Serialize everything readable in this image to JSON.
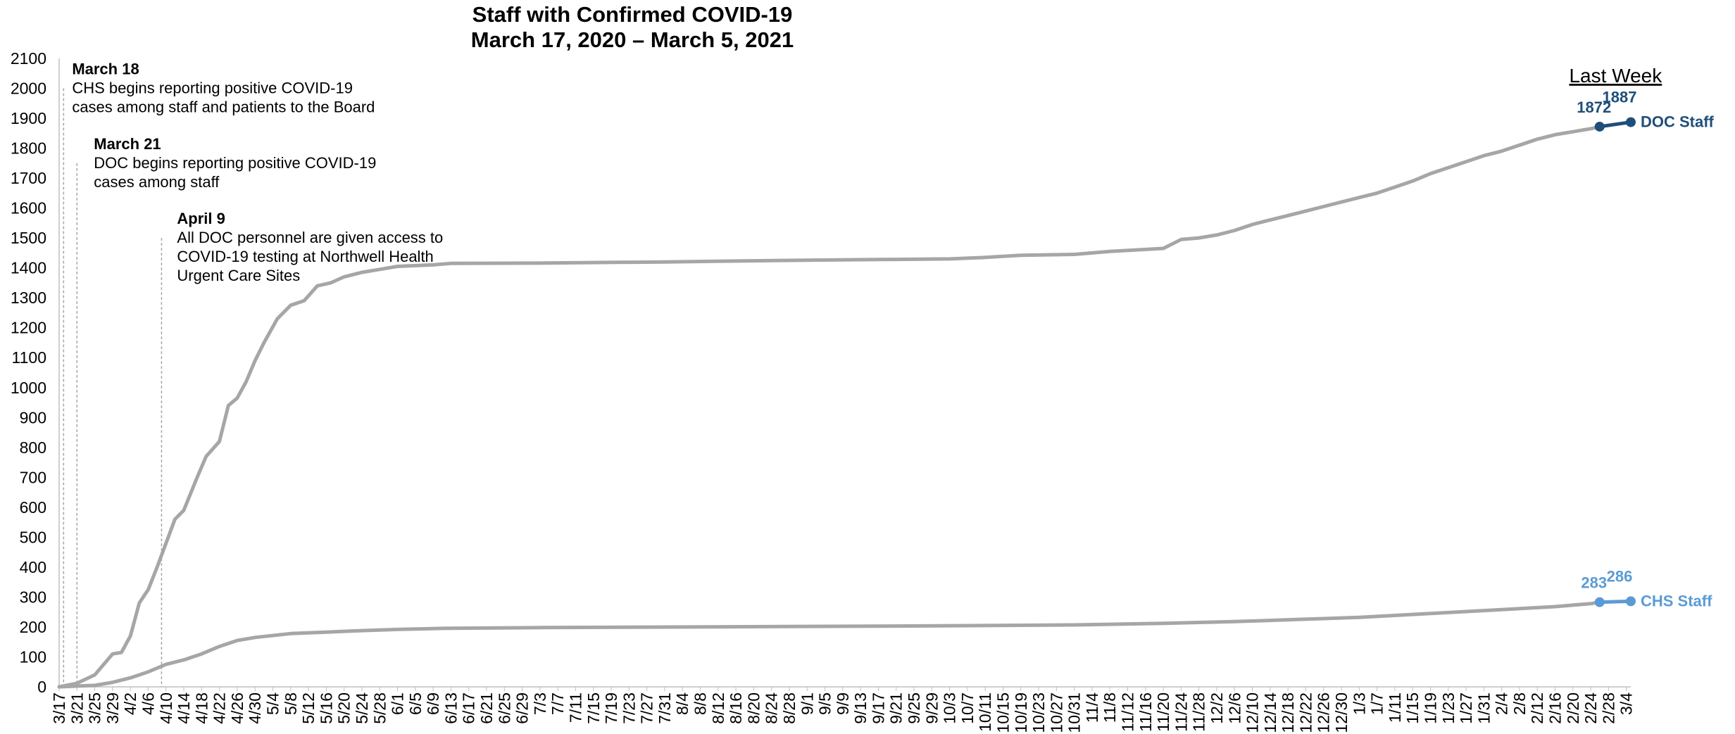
{
  "chart_data": {
    "type": "line",
    "title": [
      "Staff with Confirmed COVID-19",
      "March 17, 2020 – March 5, 2021"
    ],
    "ylim": [
      0,
      2100
    ],
    "yticks": [
      0,
      100,
      200,
      300,
      400,
      500,
      600,
      700,
      800,
      900,
      1000,
      1100,
      1200,
      1300,
      1400,
      1500,
      1600,
      1700,
      1800,
      1900,
      2000,
      2100
    ],
    "x_start": "3/17/2020",
    "x_end": "3/5/2021",
    "x_tick_labels": [
      "3/17",
      "3/21",
      "3/25",
      "3/29",
      "4/2",
      "4/6",
      "4/10",
      "4/14",
      "4/18",
      "4/22",
      "4/26",
      "4/30",
      "5/4",
      "5/8",
      "5/12",
      "5/16",
      "5/20",
      "5/24",
      "5/28",
      "6/1",
      "6/5",
      "6/9",
      "6/13",
      "6/17",
      "6/21",
      "6/25",
      "6/29",
      "7/3",
      "7/7",
      "7/11",
      "7/15",
      "7/19",
      "7/23",
      "7/27",
      "7/31",
      "8/4",
      "8/8",
      "8/12",
      "8/16",
      "8/20",
      "8/24",
      "8/28",
      "9/1",
      "9/5",
      "9/9",
      "9/13",
      "9/17",
      "9/21",
      "9/25",
      "9/29",
      "10/3",
      "10/7",
      "10/11",
      "10/15",
      "10/19",
      "10/23",
      "10/27",
      "10/31",
      "11/4",
      "11/8",
      "11/12",
      "11/16",
      "11/20",
      "11/24",
      "11/28",
      "12/2",
      "12/6",
      "12/10",
      "12/14",
      "12/18",
      "12/22",
      "12/26",
      "12/30",
      "1/3",
      "1/7",
      "1/11",
      "1/15",
      "1/19",
      "1/23",
      "1/27",
      "1/31",
      "2/4",
      "2/8",
      "2/12",
      "2/16",
      "2/20",
      "2/24",
      "2/28",
      "3/4"
    ],
    "series": [
      {
        "name": "DOC Staff",
        "line_color": "#A6A6A6",
        "last_week_color": "#1F4E79",
        "points": [
          [
            "3/17/2020",
            0
          ],
          [
            "3/21/2020",
            12
          ],
          [
            "3/25/2020",
            40
          ],
          [
            "3/29/2020",
            110
          ],
          [
            "3/31/2020",
            115
          ],
          [
            "4/2/2020",
            170
          ],
          [
            "4/4/2020",
            280
          ],
          [
            "4/6/2020",
            325
          ],
          [
            "4/8/2020",
            400
          ],
          [
            "4/10/2020",
            480
          ],
          [
            "4/12/2020",
            560
          ],
          [
            "4/14/2020",
            590
          ],
          [
            "4/17/2020",
            700
          ],
          [
            "4/19/2020",
            770
          ],
          [
            "4/22/2020",
            820
          ],
          [
            "4/24/2020",
            940
          ],
          [
            "4/26/2020",
            965
          ],
          [
            "4/28/2020",
            1020
          ],
          [
            "4/30/2020",
            1090
          ],
          [
            "5/2/2020",
            1150
          ],
          [
            "5/5/2020",
            1230
          ],
          [
            "5/8/2020",
            1275
          ],
          [
            "5/11/2020",
            1290
          ],
          [
            "5/14/2020",
            1340
          ],
          [
            "5/17/2020",
            1350
          ],
          [
            "5/20/2020",
            1370
          ],
          [
            "5/24/2020",
            1385
          ],
          [
            "5/28/2020",
            1395
          ],
          [
            "6/1/2020",
            1405
          ],
          [
            "6/9/2020",
            1410
          ],
          [
            "6/13/2020",
            1415
          ],
          [
            "7/1/2020",
            1416
          ],
          [
            "7/31/2020",
            1420
          ],
          [
            "8/28/2020",
            1425
          ],
          [
            "9/17/2020",
            1428
          ],
          [
            "10/3/2020",
            1430
          ],
          [
            "10/11/2020",
            1435
          ],
          [
            "10/19/2020",
            1442
          ],
          [
            "10/31/2020",
            1445
          ],
          [
            "11/8/2020",
            1455
          ],
          [
            "11/20/2020",
            1465
          ],
          [
            "11/24/2020",
            1495
          ],
          [
            "11/28/2020",
            1500
          ],
          [
            "12/2/2020",
            1510
          ],
          [
            "12/6/2020",
            1525
          ],
          [
            "12/10/2020",
            1545
          ],
          [
            "12/14/2020",
            1560
          ],
          [
            "12/18/2020",
            1575
          ],
          [
            "12/22/2020",
            1590
          ],
          [
            "12/26/2020",
            1605
          ],
          [
            "12/30/2020",
            1620
          ],
          [
            "1/3/2021",
            1635
          ],
          [
            "1/7/2021",
            1650
          ],
          [
            "1/11/2021",
            1670
          ],
          [
            "1/15/2021",
            1690
          ],
          [
            "1/19/2021",
            1715
          ],
          [
            "1/23/2021",
            1735
          ],
          [
            "1/27/2021",
            1755
          ],
          [
            "1/31/2021",
            1775
          ],
          [
            "2/4/2021",
            1790
          ],
          [
            "2/8/2021",
            1810
          ],
          [
            "2/12/2021",
            1830
          ],
          [
            "2/16/2021",
            1845
          ],
          [
            "2/20/2021",
            1855
          ],
          [
            "2/24/2021",
            1865
          ],
          [
            "2/26/2021",
            1872
          ]
        ],
        "last_week": [
          [
            "2/26/2021",
            1872
          ],
          [
            "3/5/2021",
            1887
          ]
        ],
        "labels": [
          "1872",
          "1887"
        ]
      },
      {
        "name": "CHS Staff",
        "line_color": "#A6A6A6",
        "last_week_color": "#5B9BD5",
        "points": [
          [
            "3/17/2020",
            0
          ],
          [
            "3/25/2020",
            5
          ],
          [
            "3/29/2020",
            15
          ],
          [
            "4/2/2020",
            30
          ],
          [
            "4/6/2020",
            50
          ],
          [
            "4/10/2020",
            75
          ],
          [
            "4/14/2020",
            90
          ],
          [
            "4/18/2020",
            110
          ],
          [
            "4/22/2020",
            135
          ],
          [
            "4/26/2020",
            155
          ],
          [
            "4/30/2020",
            165
          ],
          [
            "5/8/2020",
            178
          ],
          [
            "5/16/2020",
            183
          ],
          [
            "5/24/2020",
            188
          ],
          [
            "6/1/2020",
            192
          ],
          [
            "6/13/2020",
            196
          ],
          [
            "7/3/2020",
            198
          ],
          [
            "8/1/2020",
            200
          ],
          [
            "9/1/2020",
            202
          ],
          [
            "10/1/2020",
            204
          ],
          [
            "10/31/2020",
            207
          ],
          [
            "11/20/2020",
            212
          ],
          [
            "12/6/2020",
            218
          ],
          [
            "12/20/2020",
            225
          ],
          [
            "1/3/2021",
            232
          ],
          [
            "1/19/2021",
            245
          ],
          [
            "2/4/2021",
            258
          ],
          [
            "2/16/2021",
            268
          ],
          [
            "2/24/2021",
            278
          ],
          [
            "2/26/2021",
            283
          ]
        ],
        "last_week": [
          [
            "2/26/2021",
            283
          ],
          [
            "3/5/2021",
            286
          ]
        ],
        "labels": [
          "283",
          "286"
        ]
      }
    ],
    "legend": "inline-right",
    "last_week_label": "Last Week",
    "annotations": [
      {
        "date": "3/18/2020",
        "y_top": 2000,
        "heading": "March 18",
        "lines": [
          "CHS begins reporting positive COVID-19",
          "cases among staff and patients to the Board"
        ]
      },
      {
        "date": "3/21/2020",
        "y_top": 1750,
        "heading": "March 21",
        "lines": [
          "DOC begins reporting positive COVID-19",
          "cases among staff"
        ]
      },
      {
        "date": "4/9/2020",
        "y_top": 1500,
        "heading": "April 9",
        "lines": [
          "All DOC personnel are given access to",
          "COVID-19 testing at Northwell Health",
          "Urgent Care Sites"
        ]
      }
    ]
  }
}
